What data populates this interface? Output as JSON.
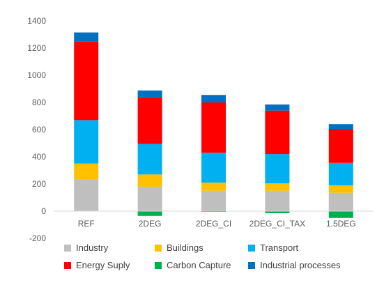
{
  "chart_data": {
    "type": "bar",
    "stacked": true,
    "categories": [
      "REF",
      "2DEG",
      "2DEG_CI",
      "2DEG_CI_TAX",
      "1.5DEG"
    ],
    "ylim": [
      -200,
      1400
    ],
    "yticks": [
      -200,
      0,
      200,
      400,
      600,
      800,
      1000,
      1200,
      1400
    ],
    "title": "",
    "xlabel": "",
    "ylabel": "",
    "grid": false,
    "legend_position": "bottom",
    "series": [
      {
        "name": "Industry",
        "color": "#BFBFBF",
        "values": [
          235,
          180,
          150,
          150,
          135
        ]
      },
      {
        "name": "Buildings",
        "color": "#FFC000",
        "values": [
          115,
          90,
          60,
          55,
          55
        ]
      },
      {
        "name": "Transport",
        "color": "#00B0F0",
        "values": [
          320,
          225,
          220,
          215,
          165
        ]
      },
      {
        "name": "Energy Suply",
        "color": "#FF0000",
        "values": [
          578,
          345,
          370,
          320,
          250
        ]
      },
      {
        "name": "Carbon Capture",
        "color": "#00B050",
        "values": [
          0,
          -35,
          -5,
          -15,
          -50
        ]
      },
      {
        "name": "Industrial processes",
        "color": "#0070C0",
        "values": [
          67,
          48,
          55,
          45,
          35
        ]
      }
    ]
  }
}
